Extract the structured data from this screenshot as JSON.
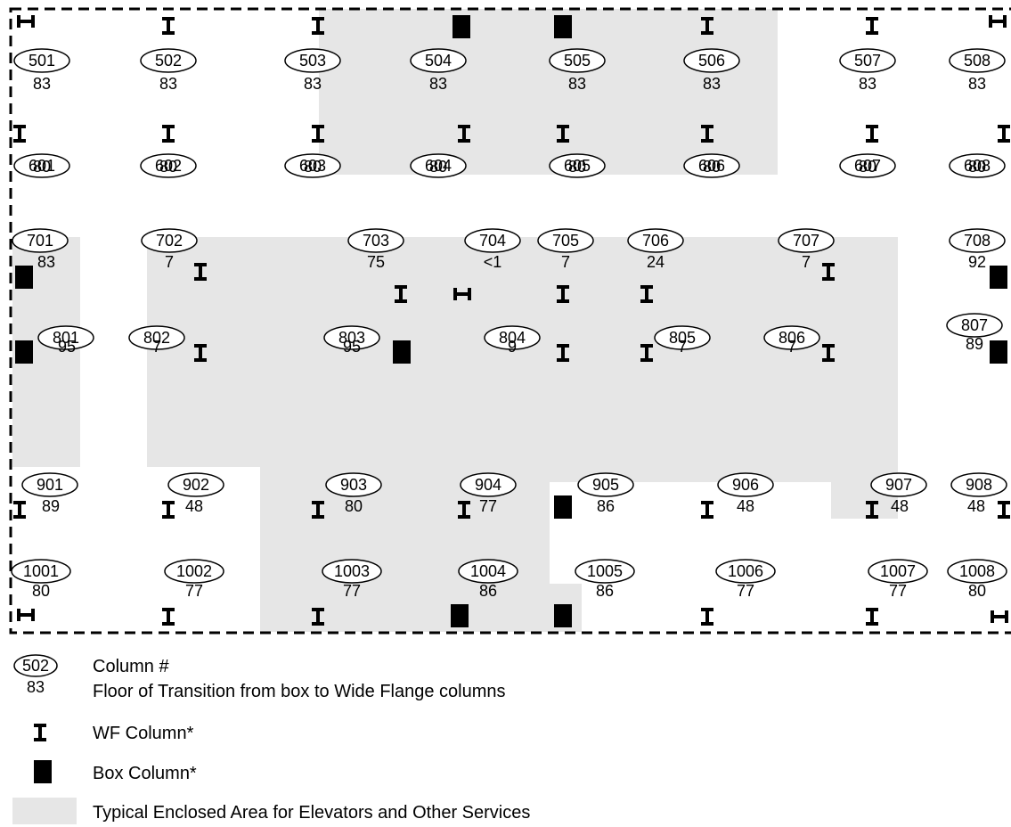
{
  "colors": {
    "enclosed_area": "#e6e6e6",
    "box_column": "#000000",
    "wf_column": "#000000",
    "outline": "#000000"
  },
  "icons": {
    "wf": "wf-column-icon",
    "box": "box-column-icon",
    "wf_rotated": "wf-column-rotated-icon"
  },
  "columns": [
    {
      "num": "501",
      "floor": "83"
    },
    {
      "num": "502",
      "floor": "83"
    },
    {
      "num": "503",
      "floor": "83"
    },
    {
      "num": "504",
      "floor": "83"
    },
    {
      "num": "505",
      "floor": "83"
    },
    {
      "num": "506",
      "floor": "83"
    },
    {
      "num": "507",
      "floor": "83"
    },
    {
      "num": "508",
      "floor": "83"
    },
    {
      "num": "601",
      "floor": "80"
    },
    {
      "num": "602",
      "floor": "80"
    },
    {
      "num": "603",
      "floor": "80"
    },
    {
      "num": "604",
      "floor": "80"
    },
    {
      "num": "605",
      "floor": "80"
    },
    {
      "num": "606",
      "floor": "80"
    },
    {
      "num": "607",
      "floor": "80"
    },
    {
      "num": "608",
      "floor": "80"
    },
    {
      "num": "701",
      "floor": "83"
    },
    {
      "num": "702",
      "floor": "7"
    },
    {
      "num": "703",
      "floor": "75"
    },
    {
      "num": "704",
      "floor": "<1"
    },
    {
      "num": "705",
      "floor": "7"
    },
    {
      "num": "706",
      "floor": "24"
    },
    {
      "num": "707",
      "floor": "7"
    },
    {
      "num": "708",
      "floor": "92"
    },
    {
      "num": "801",
      "floor": "95"
    },
    {
      "num": "802",
      "floor": "7"
    },
    {
      "num": "803",
      "floor": "95"
    },
    {
      "num": "804",
      "floor": "9"
    },
    {
      "num": "805",
      "floor": "7"
    },
    {
      "num": "806",
      "floor": "7"
    },
    {
      "num": "807",
      "floor": "89"
    },
    {
      "num": "901",
      "floor": "89"
    },
    {
      "num": "902",
      "floor": "48"
    },
    {
      "num": "903",
      "floor": "80"
    },
    {
      "num": "904",
      "floor": "77"
    },
    {
      "num": "905",
      "floor": "86"
    },
    {
      "num": "906",
      "floor": "48"
    },
    {
      "num": "907",
      "floor": "48"
    },
    {
      "num": "908",
      "floor": "48"
    },
    {
      "num": "1001",
      "floor": "80"
    },
    {
      "num": "1002",
      "floor": "77"
    },
    {
      "num": "1003",
      "floor": "77"
    },
    {
      "num": "1004",
      "floor": "86"
    },
    {
      "num": "1005",
      "floor": "86"
    },
    {
      "num": "1006",
      "floor": "77"
    },
    {
      "num": "1007",
      "floor": "77"
    },
    {
      "num": "1008",
      "floor": "80"
    }
  ],
  "legend": {
    "sample_num": "502",
    "sample_floor": "83",
    "column_number_label": "Column #",
    "floor_label": "Floor of Transition from box to Wide Flange columns",
    "wf_label": "WF Column*",
    "box_label": "Box Column*",
    "area_label": "Typical Enclosed Area for Elevators and Other Services"
  }
}
